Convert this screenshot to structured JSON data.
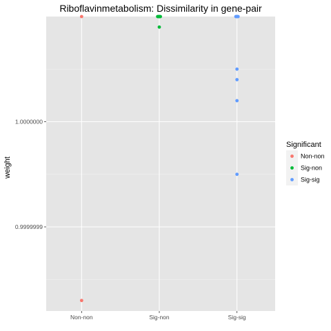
{
  "chart_data": {
    "type": "scatter",
    "title": "Riboflavinmetabolism: Dissimilarity in gene-pair",
    "xlabel": "",
    "ylabel": "weight",
    "categories": [
      "Non-non",
      "Sig-non",
      "Sig-sig"
    ],
    "y_ticks": [
      0.9999999,
      1.0
    ],
    "y_tick_labels": [
      "0.9999999",
      "1.0000000"
    ],
    "ylim": [
      0.99999982,
      1.0000001
    ],
    "grid": true,
    "legend_title": "Significant",
    "legend_position": "right",
    "series": [
      {
        "name": "Non-non",
        "color": "#F8766D",
        "category": "Non-non",
        "values": [
          1.0000001,
          0.99999983
        ]
      },
      {
        "name": "Sig-non",
        "color": "#00BA38",
        "category": "Sig-non",
        "values": [
          1.0000001,
          1.0000001,
          1.0000001,
          1.0000001,
          1.0000001,
          1.0000001,
          1.00000009
        ]
      },
      {
        "name": "Sig-sig",
        "color": "#619CFF",
        "category": "Sig-sig",
        "values": [
          1.0000001,
          1.0000001,
          1.0000001,
          1.0000001,
          1.0000001,
          1.00000005,
          1.00000004,
          1.00000002,
          0.99999995
        ]
      }
    ]
  }
}
